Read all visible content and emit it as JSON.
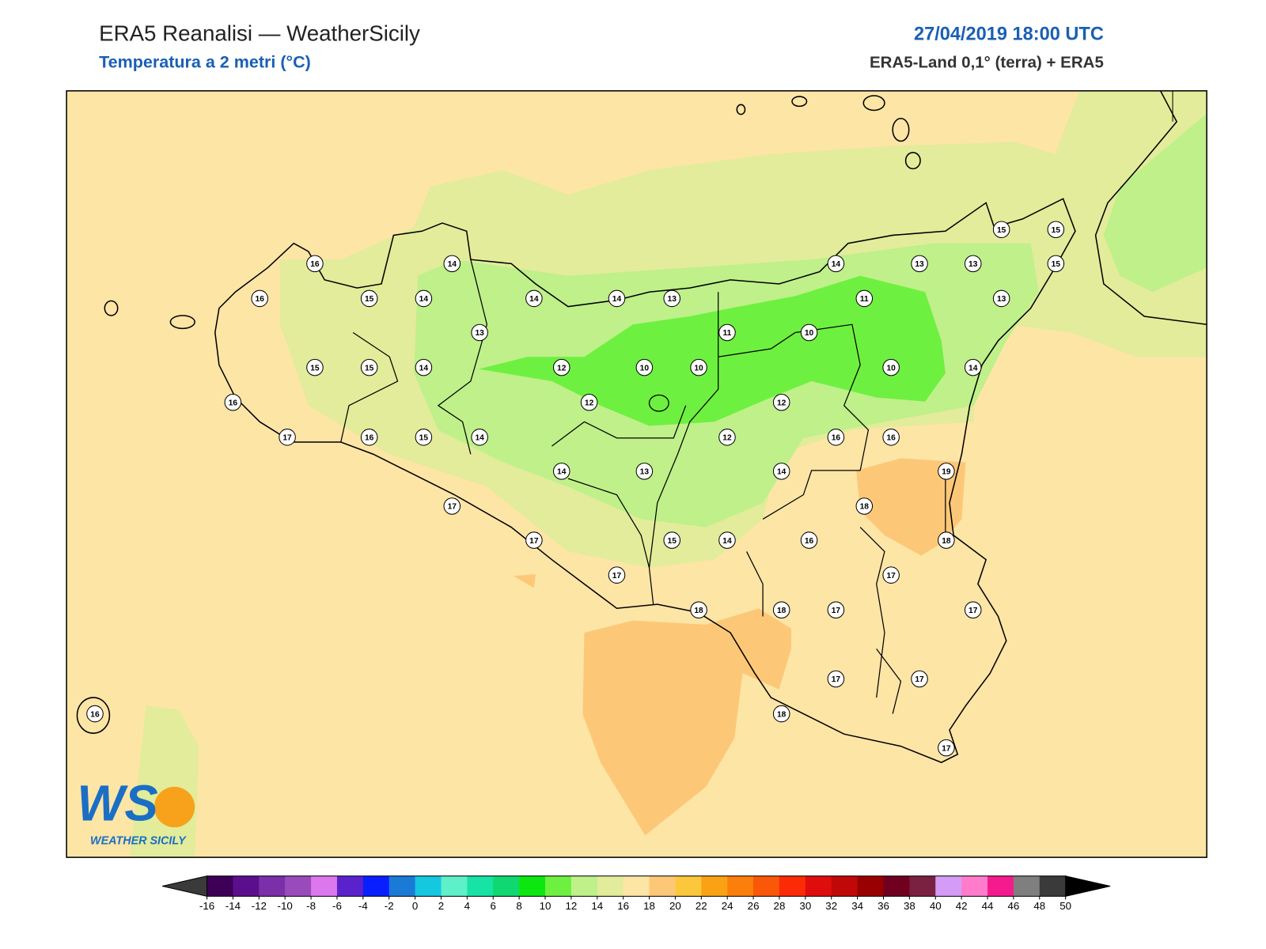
{
  "header": {
    "title": "ERA5 Reanalisi — WeatherSicily",
    "subtitle": "Temperatura a 2 metri (°C)",
    "datetime": "27/04/2019 18:00 UTC",
    "source": "ERA5-Land 0,1° (terra) + ERA5"
  },
  "logo": {
    "mark": "WS",
    "name": "WEATHER SICILY"
  },
  "stations": [
    16,
    14,
    16,
    15,
    14,
    14,
    14,
    13,
    14,
    13,
    13,
    15,
    15,
    15,
    11,
    13,
    13,
    11,
    10,
    15,
    15,
    14,
    12,
    10,
    10,
    10,
    14,
    16,
    12,
    12,
    17,
    16,
    15,
    14,
    12,
    16,
    16,
    14,
    13,
    14,
    19,
    17,
    18,
    17,
    15,
    14,
    16,
    18,
    17,
    17,
    18,
    18,
    17,
    17,
    17,
    17,
    16,
    18,
    17
  ],
  "colorbar": {
    "ticks": [
      -16,
      -14,
      -12,
      -10,
      -8,
      -6,
      -4,
      -2,
      0,
      2,
      4,
      6,
      8,
      10,
      12,
      14,
      16,
      18,
      20,
      22,
      24,
      26,
      28,
      30,
      32,
      34,
      36,
      38,
      40,
      42,
      44,
      46,
      48,
      50
    ],
    "colors": [
      "#3d0056",
      "#5c0f8c",
      "#7b2fa8",
      "#9a4bbb",
      "#dd77ee",
      "#5a22cc",
      "#0a1fff",
      "#1a7ad6",
      "#14c8e0",
      "#5ef0c8",
      "#17e3a4",
      "#10d870",
      "#0ce80f",
      "#6ef040",
      "#bff08a",
      "#e2ec9a",
      "#fde5a6",
      "#fcc878",
      "#fbc83d",
      "#fba214",
      "#fb7f0a",
      "#fb5708",
      "#fc2a06",
      "#e00d0d",
      "#c00808",
      "#990000",
      "#700020",
      "#7a2040",
      "#d49cf6",
      "#ff7ccc",
      "#f51b8e",
      "#7f7f7f",
      "#3a3a3a"
    ],
    "under": "#3a3a3a",
    "over": "#000000"
  }
}
